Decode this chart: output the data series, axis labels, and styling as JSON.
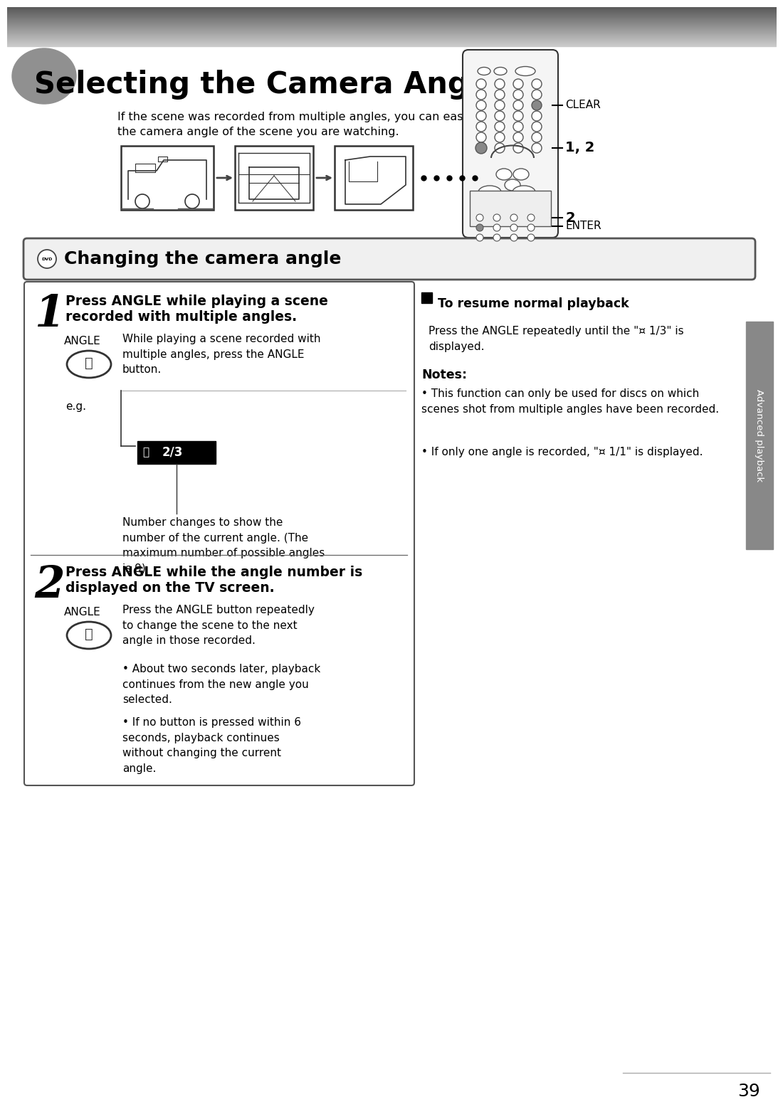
{
  "page_bg": "#ffffff",
  "title": "Selecting the Camera Angle",
  "title_subtitle1": "If the scene was recorded from multiple angles, you can easily change",
  "title_subtitle2": "the camera angle of the scene you are watching.",
  "section2_title": "Changing the camera angle",
  "step1_heading_line1": "Press ANGLE while playing a scene",
  "step1_heading_line2": "recorded with multiple angles.",
  "step1_label": "ANGLE",
  "step1_desc": "While playing a scene recorded with\nmultiple angles, press the ANGLE\nbutton.",
  "step1_eg": "e.g.",
  "step1_eg_text": "2/3",
  "step1_number_desc": "Number changes to show the\nnumber of the current angle. (The\nmaximum number of possible angles\nis 9)",
  "step2_heading_line1": "Press ANGLE while the angle number is",
  "step2_heading_line2": "displayed on the TV screen.",
  "step2_label": "ANGLE",
  "step2_desc": "Press the ANGLE button repeatedly\nto change the scene to the next\nangle in those recorded.",
  "step2_bullet1": "About two seconds later, playback\ncontinues from the new angle you\nselected.",
  "step2_bullet2": "If no button is pressed within 6\nseconds, playback continues\nwithout changing the current\nangle.",
  "resume_title": "To resume normal playback",
  "resume_body1": "Press the ANGLE repeatedly until the \"¤ 1/3\" is",
  "resume_body2": "displayed.",
  "notes_title": "Notes:",
  "note1": "This function can only be used for discs on which\nscenes shot from multiple angles have been recorded.",
  "note2": "If only one angle is recorded, \"¤ 1/1\" is displayed.",
  "sidebar_text": "Advanced playback",
  "page_number": "39",
  "clear_label": "CLEAR",
  "label_12": "1, 2",
  "label_2": "2",
  "enter_label": "ENTER"
}
